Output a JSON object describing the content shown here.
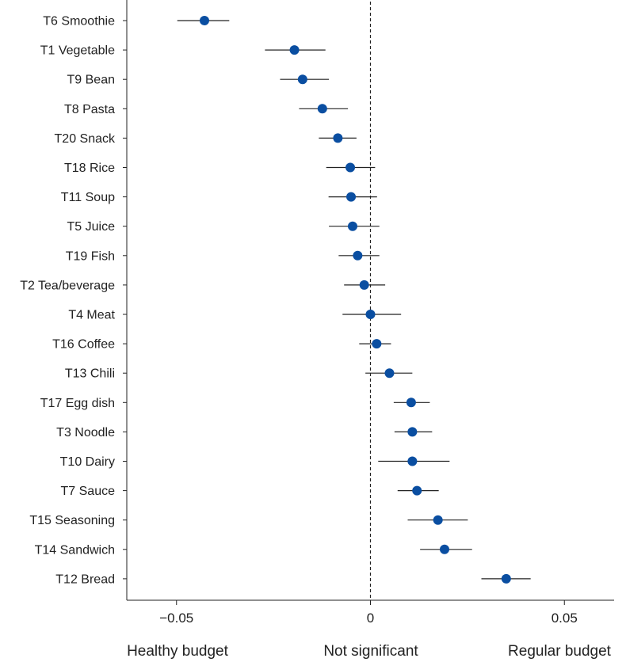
{
  "chart_data": {
    "type": "forest",
    "xlim": [
      -0.063,
      0.063
    ],
    "xticks": [
      -0.05,
      0,
      0.05
    ],
    "xtick_labels": [
      "−0.05",
      "0",
      "0.05"
    ],
    "reference_line": 0,
    "region_labels": {
      "left": "Healthy budget",
      "center": "Not significant",
      "right": "Regular budget"
    },
    "marker_color": "#0a4ea1",
    "items": [
      {
        "label": "T6 Smoothie",
        "estimate": -0.0428,
        "lower": -0.0498,
        "upper": -0.0364
      },
      {
        "label": "T1 Vegetable",
        "estimate": -0.0196,
        "lower": -0.0272,
        "upper": -0.0116
      },
      {
        "label": "T9 Bean",
        "estimate": -0.0175,
        "lower": -0.0233,
        "upper": -0.0107
      },
      {
        "label": "T8 Pasta",
        "estimate": -0.0124,
        "lower": -0.0184,
        "upper": -0.0058
      },
      {
        "label": "T20 Snack",
        "estimate": -0.0084,
        "lower": -0.0133,
        "upper": -0.0036
      },
      {
        "label": "T18 Rice",
        "estimate": -0.0052,
        "lower": -0.0114,
        "upper": 0.0012
      },
      {
        "label": "T11 Soup",
        "estimate": -0.005,
        "lower": -0.0108,
        "upper": 0.0017
      },
      {
        "label": "T5 Juice",
        "estimate": -0.0046,
        "lower": -0.0107,
        "upper": 0.0023
      },
      {
        "label": "T19 Fish",
        "estimate": -0.0033,
        "lower": -0.0082,
        "upper": 0.0023
      },
      {
        "label": "T2 Tea/beverage",
        "estimate": -0.0016,
        "lower": -0.0068,
        "upper": 0.0038
      },
      {
        "label": "T4 Meat",
        "estimate": 0.0,
        "lower": -0.0072,
        "upper": 0.0079
      },
      {
        "label": "T16 Coffee",
        "estimate": 0.0016,
        "lower": -0.0029,
        "upper": 0.0053
      },
      {
        "label": "T13 Chili",
        "estimate": 0.0049,
        "lower": -0.0013,
        "upper": 0.0108
      },
      {
        "label": "T17 Egg dish",
        "estimate": 0.0105,
        "lower": 0.006,
        "upper": 0.0153
      },
      {
        "label": "T3 Noodle",
        "estimate": 0.0108,
        "lower": 0.0062,
        "upper": 0.0159
      },
      {
        "label": "T10 Dairy",
        "estimate": 0.0108,
        "lower": 0.002,
        "upper": 0.0204
      },
      {
        "label": "T7 Sauce",
        "estimate": 0.012,
        "lower": 0.007,
        "upper": 0.0176
      },
      {
        "label": "T15 Seasoning",
        "estimate": 0.0174,
        "lower": 0.0096,
        "upper": 0.0251
      },
      {
        "label": "T14 Sandwich",
        "estimate": 0.0191,
        "lower": 0.0128,
        "upper": 0.0262
      },
      {
        "label": "T12 Bread",
        "estimate": 0.035,
        "lower": 0.0286,
        "upper": 0.0413
      }
    ]
  }
}
